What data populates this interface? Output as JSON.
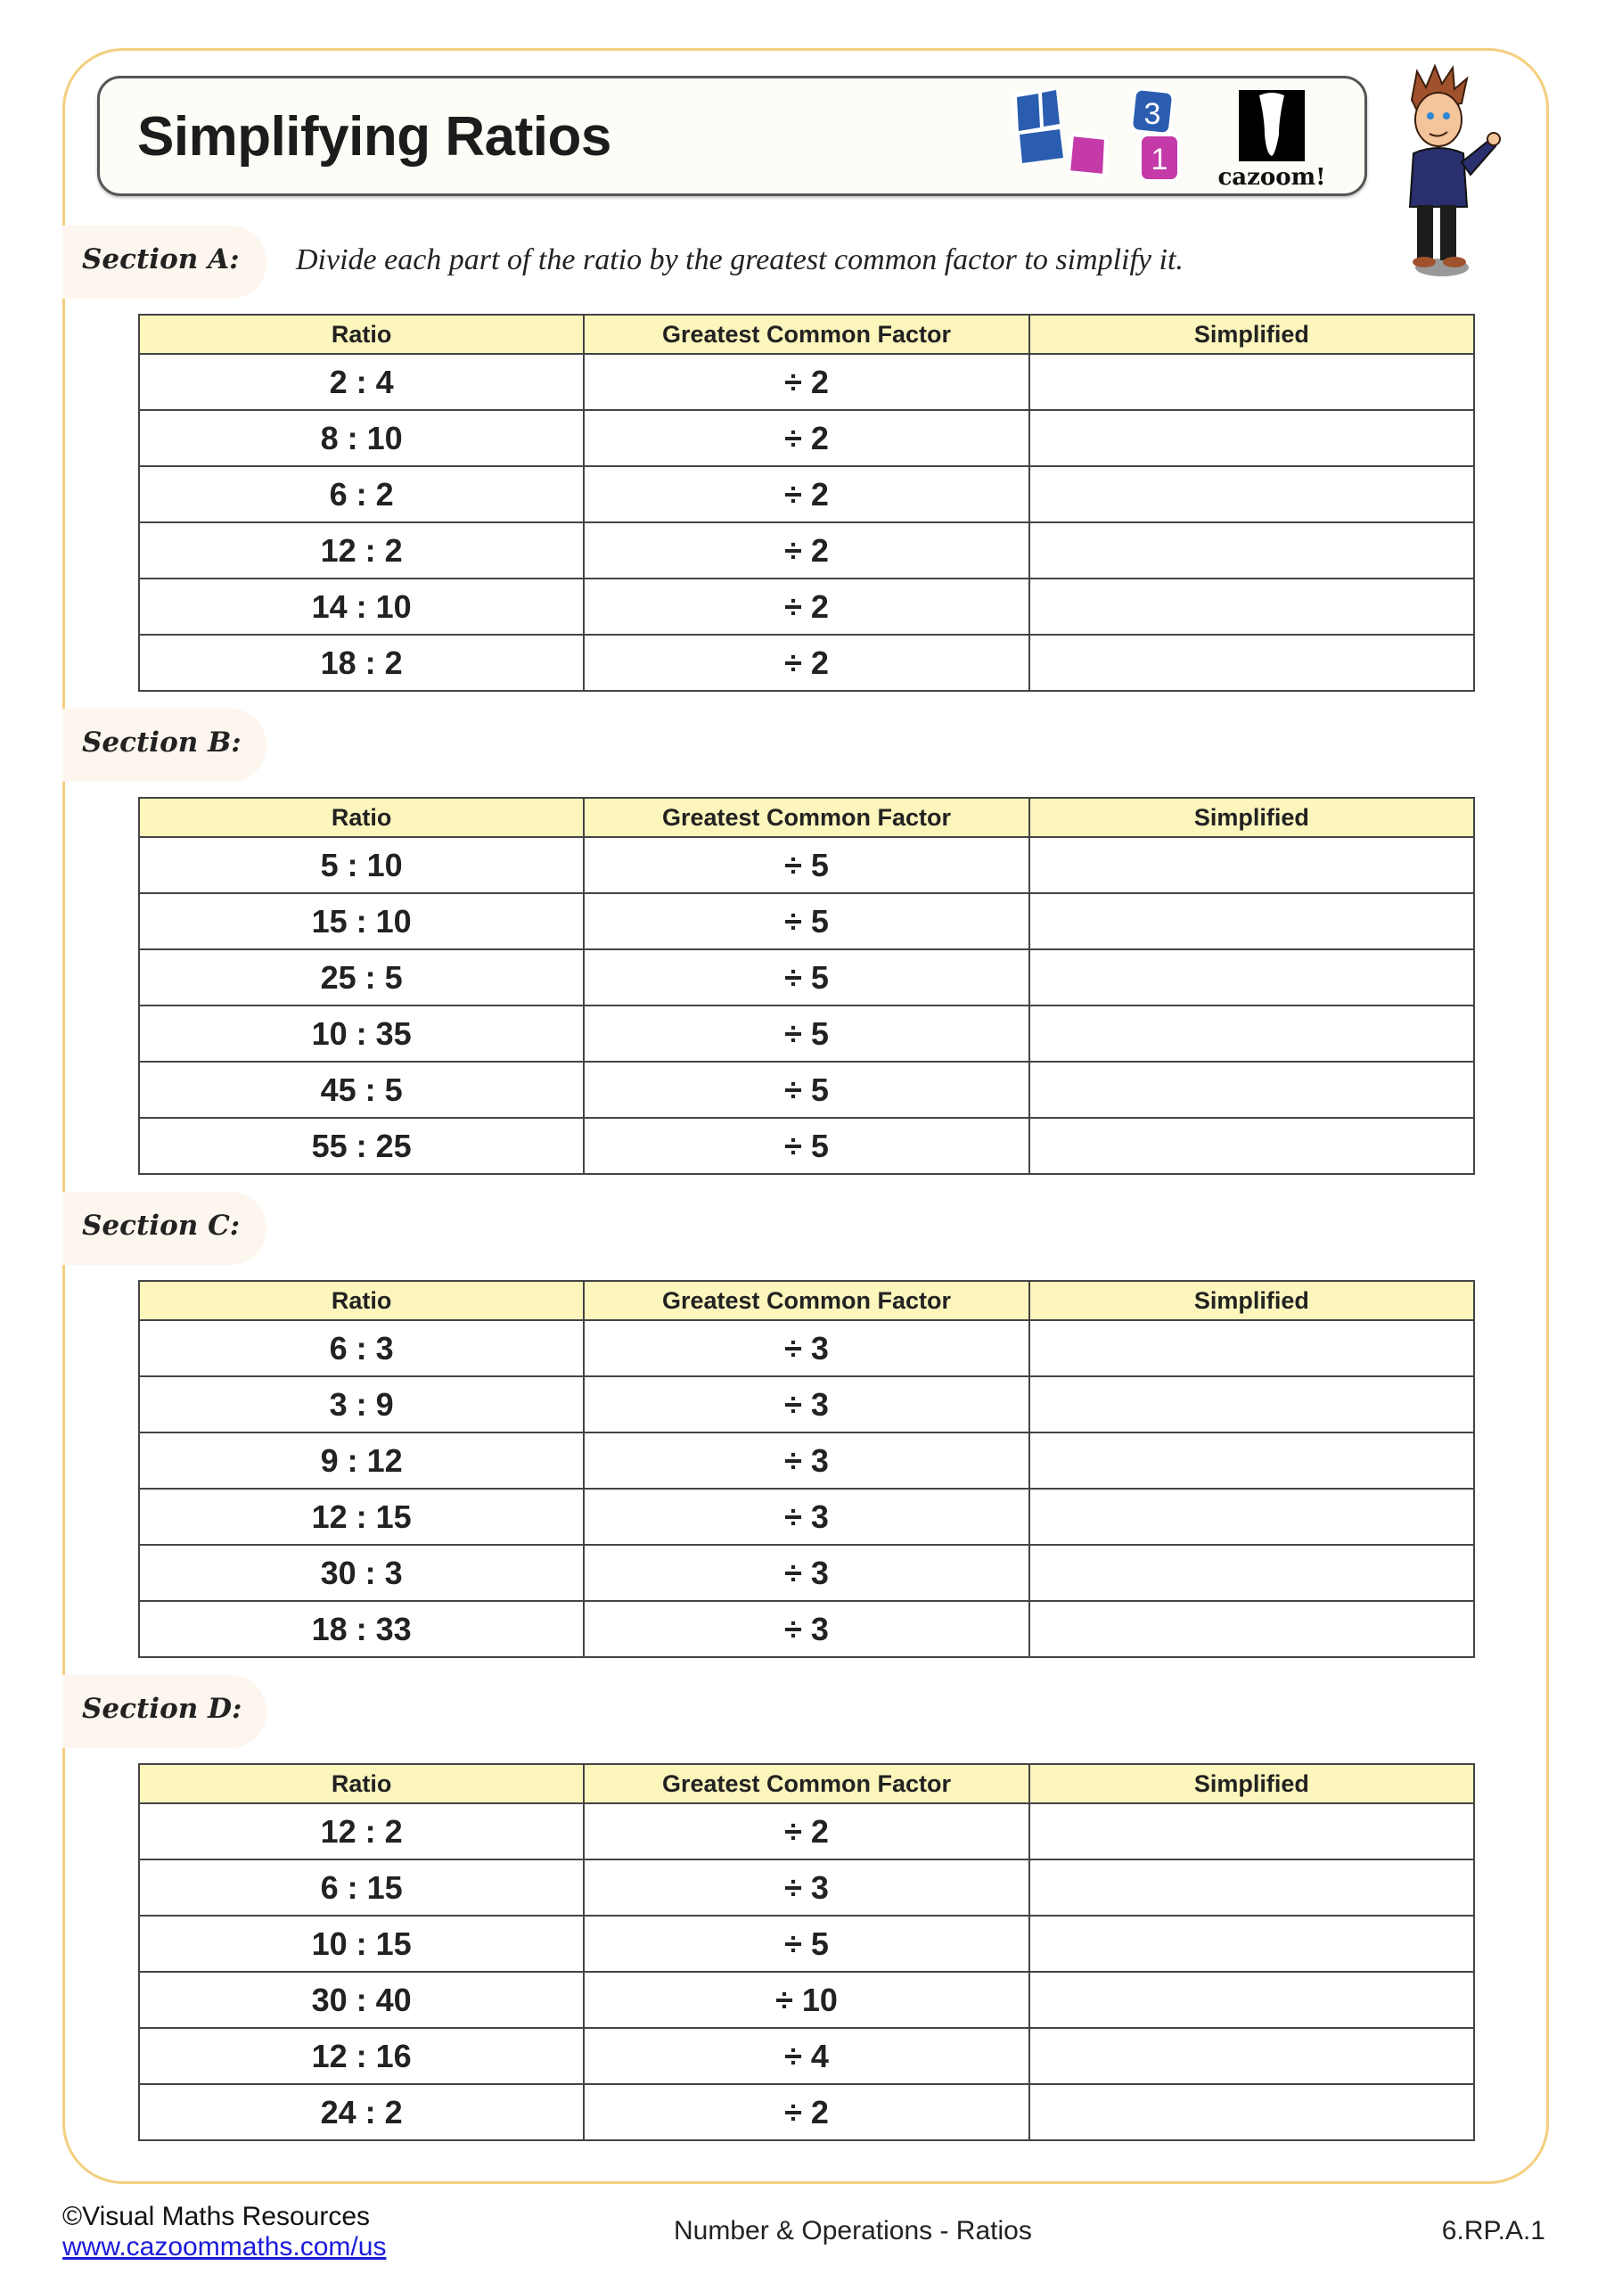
{
  "title": "Simplifying Ratios",
  "logo": {
    "text": "cazoom!",
    "tile_numbers": [
      "3",
      "1"
    ],
    "colors": {
      "blue": "#2a5db0",
      "magenta": "#c33aa8"
    }
  },
  "instruction": "Divide each part of the ratio by the greatest common factor to simplify it.",
  "columns": [
    "Ratio",
    "Greatest Common Factor",
    "Simplified"
  ],
  "sections": [
    {
      "label": "Section A:",
      "rows": [
        {
          "ratio": "2 : 4",
          "gcf": "÷ 2",
          "simplified": ""
        },
        {
          "ratio": "8 : 10",
          "gcf": "÷ 2",
          "simplified": ""
        },
        {
          "ratio": "6 : 2",
          "gcf": "÷ 2",
          "simplified": ""
        },
        {
          "ratio": "12 : 2",
          "gcf": "÷ 2",
          "simplified": ""
        },
        {
          "ratio": "14 : 10",
          "gcf": "÷ 2",
          "simplified": ""
        },
        {
          "ratio": "18 : 2",
          "gcf": "÷ 2",
          "simplified": ""
        }
      ]
    },
    {
      "label": "Section B:",
      "rows": [
        {
          "ratio": "5 : 10",
          "gcf": "÷ 5",
          "simplified": ""
        },
        {
          "ratio": "15 : 10",
          "gcf": "÷ 5",
          "simplified": ""
        },
        {
          "ratio": "25 : 5",
          "gcf": "÷ 5",
          "simplified": ""
        },
        {
          "ratio": "10 : 35",
          "gcf": "÷ 5",
          "simplified": ""
        },
        {
          "ratio": "45 : 5",
          "gcf": "÷ 5",
          "simplified": ""
        },
        {
          "ratio": "55 : 25",
          "gcf": "÷ 5",
          "simplified": ""
        }
      ]
    },
    {
      "label": "Section C:",
      "rows": [
        {
          "ratio": "6 : 3",
          "gcf": "÷ 3",
          "simplified": ""
        },
        {
          "ratio": "3 : 9",
          "gcf": "÷ 3",
          "simplified": ""
        },
        {
          "ratio": "9 : 12",
          "gcf": "÷ 3",
          "simplified": ""
        },
        {
          "ratio": "12 : 15",
          "gcf": "÷ 3",
          "simplified": ""
        },
        {
          "ratio": "30 : 3",
          "gcf": "÷ 3",
          "simplified": ""
        },
        {
          "ratio": "18 : 33",
          "gcf": "÷ 3",
          "simplified": ""
        }
      ]
    },
    {
      "label": "Section D:",
      "rows": [
        {
          "ratio": "12 : 2",
          "gcf": "÷ 2",
          "simplified": ""
        },
        {
          "ratio": "6 : 15",
          "gcf": "÷ 3",
          "simplified": ""
        },
        {
          "ratio": "10 : 15",
          "gcf": "÷ 5",
          "simplified": ""
        },
        {
          "ratio": "30 : 40",
          "gcf": "÷ 10",
          "simplified": ""
        },
        {
          "ratio": "12 : 16",
          "gcf": "÷ 4",
          "simplified": ""
        },
        {
          "ratio": "24 : 2",
          "gcf": "÷ 2",
          "simplified": ""
        }
      ]
    }
  ],
  "footer": {
    "copyright": "©Visual Maths Resources",
    "link": "www.cazoommaths.com/us",
    "topic": "Number & Operations - Ratios",
    "standard": "6.RP.A.1"
  },
  "colors": {
    "frame": "#f3cf7f",
    "header_fill": "#fcf6bd",
    "pill": "#fdf6ee"
  }
}
